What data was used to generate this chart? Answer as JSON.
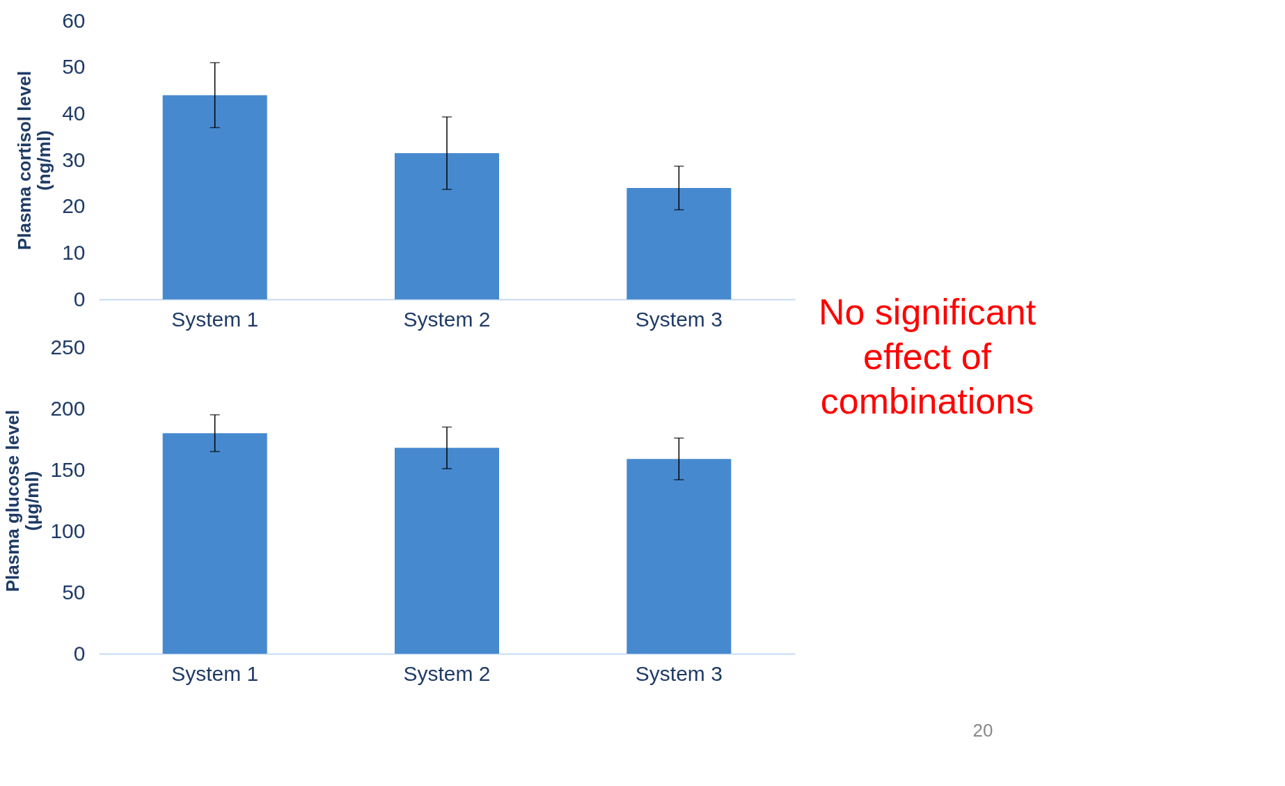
{
  "chart_data": [
    {
      "type": "bar",
      "categories": [
        "System 1",
        "System 2",
        "System 3"
      ],
      "ylabel": "Plasma cortisol level (ng/ml)",
      "values": [
        44,
        31.5,
        24
      ],
      "errors": [
        7,
        7.8,
        4.7
      ],
      "color": "#4689cf",
      "ylim": [
        0,
        60
      ],
      "yticks": [
        0,
        10,
        20,
        30,
        40,
        50,
        60
      ],
      "grid": false,
      "annotations": [
        "No significant effect of combinations"
      ]
    },
    {
      "type": "bar",
      "categories": [
        "System 1",
        "System 2",
        "System 3"
      ],
      "ylabel": "Plasma glucose level (µg/ml)",
      "values": [
        180,
        168,
        159
      ],
      "errors": [
        15,
        17,
        17
      ],
      "color": "#4689cf",
      "ylim": [
        0,
        250
      ],
      "yticks": [
        0,
        50,
        100,
        150,
        200,
        250
      ],
      "grid": false,
      "annotations": [
        "20"
      ]
    }
  ]
}
